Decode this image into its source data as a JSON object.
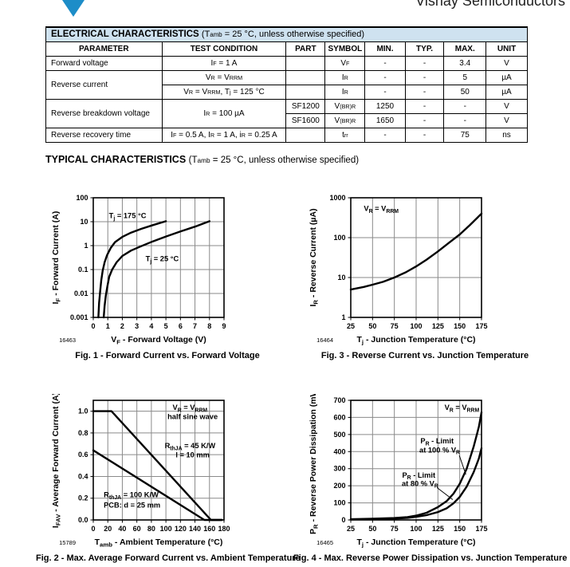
{
  "page": {
    "brand": "Vishay Semiconductors"
  },
  "electrical_table": {
    "title_bold": "ELECTRICAL CHARACTERISTICS ",
    "title_rest": "(T~amb~ = 25 °C, unless otherwise specified)",
    "headers": [
      "PARAMETER",
      "TEST CONDITION",
      "PART",
      "SYMBOL",
      "MIN.",
      "TYP.",
      "MAX.",
      "UNIT"
    ],
    "rows": [
      {
        "param": "Forward voltage",
        "cond": "I~F~ = 1 A",
        "part": "",
        "sym": "V~F~",
        "min": "-",
        "typ": "-",
        "max": "3.4",
        "unit": "V"
      },
      {
        "param": "Reverse current",
        "cond": "V~R~ = V~RRM~",
        "part": "",
        "sym": "I~R~",
        "min": "-",
        "typ": "-",
        "max": "5",
        "unit": "µA"
      },
      {
        "cond": "V~R~ = V~RRM~, T~j~ = 125 °C",
        "part": "",
        "sym": "I~R~",
        "min": "-",
        "typ": "-",
        "max": "50",
        "unit": "µA"
      },
      {
        "param": "Reverse breakdown voltage",
        "cond": "I~R~ = 100 µA",
        "part": "SF1200",
        "sym": "V~(BR)R~",
        "min": "1250",
        "typ": "-",
        "max": "-",
        "unit": "V"
      },
      {
        "part": "SF1600",
        "sym": "V~(BR)R~",
        "min": "1650",
        "typ": "-",
        "max": "-",
        "unit": "V"
      },
      {
        "param": "Reverse recovery time",
        "cond": "I~F~ = 0.5 A, I~R~ = 1 A, i~R~ = 0.25 A",
        "part": "",
        "sym": "t~rr~",
        "min": "-",
        "typ": "-",
        "max": "75",
        "unit": "ns"
      }
    ]
  },
  "typical_heading": {
    "bold": "TYPICAL CHARACTERISTICS ",
    "rest": "(T~amb~ = 25 °C, unless otherwise specified)"
  },
  "colors": {
    "accent_blue": "#1d8dc8",
    "table_title_bg": "#cfe2f0",
    "grid_gray": "#8a8a8a"
  },
  "chart_data": [
    {
      "type": "line",
      "figure_number": "16463",
      "caption": "Fig. 1 - Forward Current vs. Forward Voltage",
      "xlabel": "V~F~ - Forward Voltage (V)",
      "ylabel": "I~F~ - Forward Current (A)",
      "xscale": "linear",
      "xlim": [
        0,
        9
      ],
      "xticks": [
        0,
        1,
        2,
        3,
        4,
        5,
        6,
        7,
        8,
        9
      ],
      "xtick_labels": [
        "0",
        "1",
        "2",
        "3",
        "4",
        "5",
        "6",
        "7",
        "8",
        "9"
      ],
      "yscale": "log",
      "ylim": [
        0.001,
        100
      ],
      "yticks": [
        0.001,
        0.01,
        0.1,
        1,
        10,
        100
      ],
      "ytick_labels": [
        "0.001",
        "0.01",
        "0.1",
        "1",
        "10",
        "100"
      ],
      "grid": true,
      "legend": "inline-annotations",
      "series": [
        {
          "name": "T~j~ = 175 °C",
          "points": [
            [
              0.35,
              0.001
            ],
            [
              0.4,
              0.004
            ],
            [
              0.47,
              0.012
            ],
            [
              0.55,
              0.035
            ],
            [
              0.65,
              0.09
            ],
            [
              0.78,
              0.2
            ],
            [
              0.95,
              0.4
            ],
            [
              1.2,
              0.8
            ],
            [
              1.5,
              1.4
            ],
            [
              2.0,
              2.3
            ],
            [
              2.6,
              3.5
            ],
            [
              3.3,
              5.0
            ],
            [
              4.1,
              7.2
            ],
            [
              5.0,
              10.5
            ]
          ]
        },
        {
          "name": "T~j~ = 25 °C",
          "points": [
            [
              0.72,
              0.001
            ],
            [
              0.78,
              0.003
            ],
            [
              0.86,
              0.008
            ],
            [
              0.97,
              0.02
            ],
            [
              1.1,
              0.05
            ],
            [
              1.3,
              0.1
            ],
            [
              1.6,
              0.2
            ],
            [
              2.0,
              0.37
            ],
            [
              2.6,
              0.62
            ],
            [
              3.3,
              0.95
            ],
            [
              4.1,
              1.5
            ],
            [
              5.0,
              2.4
            ],
            [
              6.0,
              3.9
            ],
            [
              7.0,
              6.2
            ],
            [
              8.0,
              10.5
            ]
          ]
        }
      ],
      "annotations": [
        {
          "text": "T~j~ = 175 °C",
          "fx": 0.12,
          "fy": 0.17,
          "anchor": "start"
        },
        {
          "text": "T~j~ = 25 °C",
          "fx": 0.4,
          "fy": 0.53,
          "anchor": "start"
        }
      ]
    },
    {
      "type": "line",
      "figure_number": "16464",
      "caption": "Fig. 3 - Reverse Current vs. Junction Temperature",
      "xlabel": "T~j~ - Junction Temperature (°C)",
      "ylabel": "I~R~ - Reverse Current (µA)",
      "xscale": "linear",
      "xlim": [
        25,
        175
      ],
      "xticks": [
        25,
        50,
        75,
        100,
        125,
        150,
        175
      ],
      "xtick_labels": [
        "25",
        "50",
        "75",
        "100",
        "125",
        "150",
        "175"
      ],
      "yscale": "log",
      "ylim": [
        1,
        1000
      ],
      "yticks": [
        1,
        10,
        100,
        1000
      ],
      "ytick_labels": [
        "1",
        "10",
        "100",
        "1000"
      ],
      "grid": true,
      "legend": "inline-annotations",
      "series": [
        {
          "name": "V~R~ = V~RRM~",
          "points": [
            [
              25,
              5
            ],
            [
              40,
              5.8
            ],
            [
              50,
              6.6
            ],
            [
              62,
              7.8
            ],
            [
              75,
              10
            ],
            [
              88,
              13.5
            ],
            [
              100,
              19
            ],
            [
              112,
              28
            ],
            [
              125,
              45
            ],
            [
              138,
              75
            ],
            [
              150,
              120
            ],
            [
              162,
              210
            ],
            [
              175,
              400
            ]
          ]
        }
      ],
      "annotations": [
        {
          "text": "V~R~ = V~RRM~",
          "fx": 0.1,
          "fy": 0.11,
          "anchor": "start"
        }
      ]
    },
    {
      "type": "line",
      "figure_number": "15789",
      "caption": "Fig. 2 - Max. Average Forward Current vs. Ambient Temperature",
      "xlabel": "T~amb~ - Ambient Temperature (°C)",
      "ylabel": "I~FAV~ - Average Forward Current (A)",
      "xscale": "linear",
      "xlim": [
        0,
        180
      ],
      "xticks": [
        0,
        20,
        40,
        60,
        80,
        100,
        120,
        140,
        160,
        180
      ],
      "xtick_labels": [
        "0",
        "20",
        "40",
        "60",
        "80",
        "100",
        "120",
        "140",
        "160",
        "180"
      ],
      "yscale": "linear",
      "ylim": [
        0,
        1.1
      ],
      "yticks": [
        0,
        0.2,
        0.4,
        0.6,
        0.8,
        1.0
      ],
      "ytick_labels": [
        "0.0",
        "0.2",
        "0.4",
        "0.6",
        "0.8",
        "1.0"
      ],
      "grid": true,
      "legend": "inline-annotations",
      "series": [
        {
          "name": "R~thJA~ = 45 K/W, l = 10 mm",
          "points": [
            [
              0,
              1.0
            ],
            [
              25,
              1.0
            ],
            [
              162,
              0
            ],
            [
              177,
              0
            ]
          ]
        },
        {
          "name": "R~thJA~ = 100 K/W, PCB: d = 25 mm",
          "points": [
            [
              0,
              0.64
            ],
            [
              153,
              0
            ],
            [
              177,
              0
            ]
          ]
        }
      ],
      "annotations": [
        {
          "text": "V~R~ = V~RRM~",
          "fx": 0.74,
          "fy": 0.08,
          "anchor": "middle"
        },
        {
          "text": "half sine wave",
          "fx": 0.76,
          "fy": 0.155,
          "anchor": "middle"
        },
        {
          "text": "R~thJA~ = 45 K/W",
          "fx": 0.74,
          "fy": 0.4,
          "anchor": "middle"
        },
        {
          "text": "l = 10 mm",
          "fx": 0.76,
          "fy": 0.475,
          "anchor": "middle"
        },
        {
          "text": "R~thJA~ = 100 K/W",
          "fx": 0.08,
          "fy": 0.81,
          "anchor": "start"
        },
        {
          "text": "PCB: d = 25 mm",
          "fx": 0.08,
          "fy": 0.895,
          "anchor": "start"
        }
      ]
    },
    {
      "type": "line",
      "figure_number": "16465",
      "caption": "Fig. 4 - Max. Reverse Power Dissipation vs. Junction Temperature",
      "xlabel": "T~j~ - Junction Temperature (°C)",
      "ylabel": "P~R~ - Reverse Power Dissipation (mW)",
      "xscale": "linear",
      "xlim": [
        25,
        175
      ],
      "xticks": [
        25,
        50,
        75,
        100,
        125,
        150,
        175
      ],
      "xtick_labels": [
        "25",
        "50",
        "75",
        "100",
        "125",
        "150",
        "175"
      ],
      "yscale": "linear",
      "ylim": [
        0,
        700
      ],
      "yticks": [
        0,
        100,
        200,
        300,
        400,
        500,
        600,
        700
      ],
      "ytick_labels": [
        "0",
        "100",
        "200",
        "300",
        "400",
        "500",
        "600",
        "700"
      ],
      "grid": true,
      "legend": "inline-annotations",
      "series": [
        {
          "name": "P~R~ - Limit at 100 % V~R~",
          "points": [
            [
              25,
              4
            ],
            [
              50,
              7
            ],
            [
              75,
              11
            ],
            [
              90,
              17
            ],
            [
              100,
              25
            ],
            [
              112,
              42
            ],
            [
              125,
              75
            ],
            [
              135,
              110
            ],
            [
              143,
              155
            ],
            [
              150,
              212
            ],
            [
              158,
              300
            ],
            [
              166,
              430
            ],
            [
              172,
              545
            ],
            [
              175,
              630
            ]
          ]
        },
        {
          "name": "P~R~ - Limit at 80 % V~R~",
          "points": [
            [
              25,
              3
            ],
            [
              50,
              5
            ],
            [
              75,
              8
            ],
            [
              90,
              12
            ],
            [
              100,
              18
            ],
            [
              112,
              28
            ],
            [
              125,
              46
            ],
            [
              135,
              68
            ],
            [
              143,
              98
            ],
            [
              150,
              135
            ],
            [
              158,
              195
            ],
            [
              166,
              280
            ],
            [
              172,
              360
            ],
            [
              175,
              420
            ]
          ]
        }
      ],
      "annotations": [
        {
          "text": "V~R~ = V~RRM~",
          "fx": 0.85,
          "fy": 0.08,
          "anchor": "middle"
        },
        {
          "text": "P~R~ - Limit",
          "fx": 0.66,
          "fy": 0.36,
          "anchor": "middle"
        },
        {
          "text": "at 100 % V~R~",
          "fx": 0.68,
          "fy": 0.435,
          "anchor": "middle",
          "leader": [
            0.83,
            0.46,
            0.88,
            0.62
          ]
        },
        {
          "text": "P~R~ - Limit",
          "fx": 0.52,
          "fy": 0.645,
          "anchor": "middle"
        },
        {
          "text": "at 80 % V~R~",
          "fx": 0.53,
          "fy": 0.715,
          "anchor": "middle",
          "leader": [
            0.66,
            0.73,
            0.78,
            0.83
          ]
        }
      ]
    }
  ]
}
